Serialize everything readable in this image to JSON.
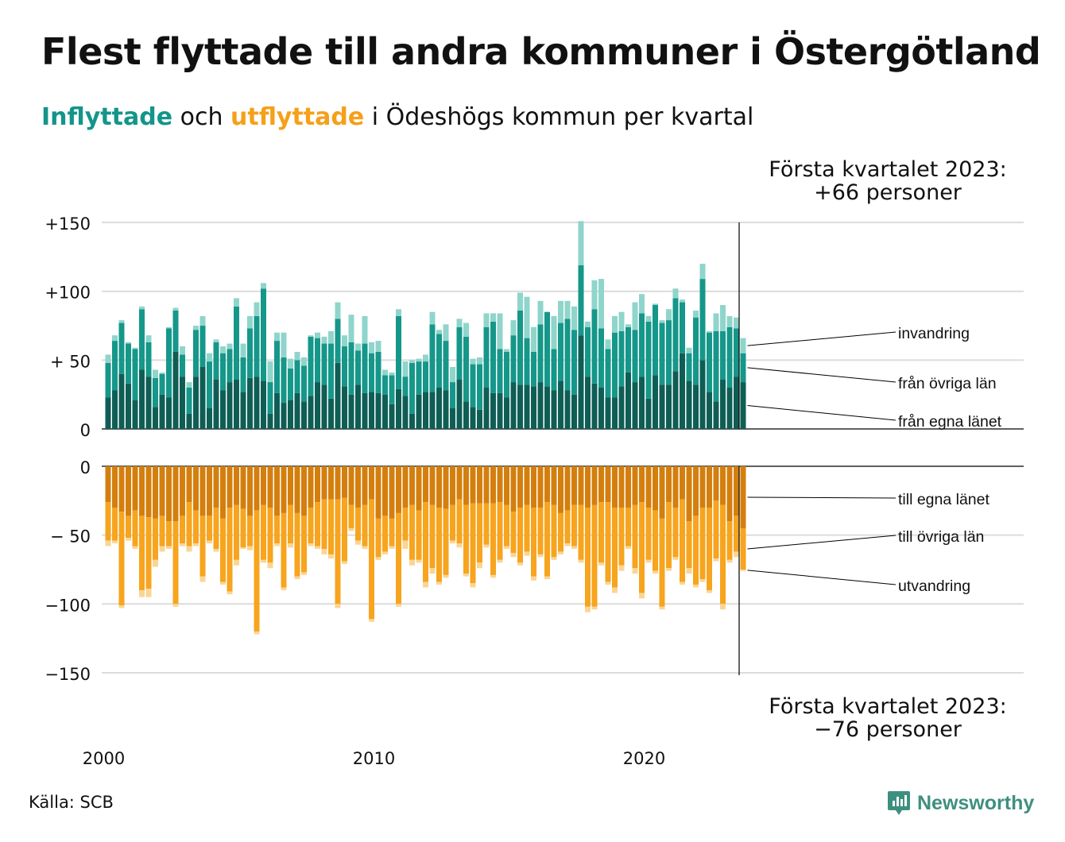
{
  "title": "Flest flyttade till andra kommuner i Östergötland",
  "subtitle": {
    "in_word": "Inflyttade",
    "mid": " och ",
    "out_word": "utflyttade",
    "rest": " i Ödeshögs kommun per kvartal"
  },
  "source": "Källa: SCB",
  "logo_text": "Newsworthy",
  "colors": {
    "in_egna": "#0f5e56",
    "in_ovriga": "#15978a",
    "in_invandring": "#8fd5cb",
    "out_egna": "#d47f0d",
    "out_ovriga": "#f7a41e",
    "out_utvandring": "#fbd593"
  },
  "chart_data": [
    {
      "type": "bar",
      "stacked": true,
      "title": "Inflyttade",
      "x_start": "2000 Q1",
      "x_ticks": [
        "2000",
        "2010",
        "2020"
      ],
      "ylim": [
        0,
        150
      ],
      "y_ticks": [
        "0",
        "+ 50",
        "+100",
        "+150"
      ],
      "y_tick_values": [
        0,
        50,
        100,
        150
      ],
      "grid": true,
      "annotation": {
        "line1": "Första kvartalet 2023:",
        "line2": "+66 personer"
      },
      "series": [
        {
          "name": "från egna länet",
          "values": [
            23,
            28,
            40,
            33,
            21,
            43,
            38,
            16,
            25,
            23,
            56,
            38,
            11,
            38,
            45,
            15,
            36,
            28,
            34,
            36,
            27,
            37,
            38,
            35,
            11,
            26,
            19,
            21,
            26,
            20,
            24,
            34,
            32,
            22,
            48,
            31,
            25,
            32,
            26,
            27,
            26,
            25,
            18,
            29,
            24,
            11,
            25,
            27,
            27,
            30,
            28,
            15,
            36,
            20,
            16,
            14,
            30,
            26,
            26,
            23,
            34,
            32,
            32,
            31,
            34,
            31,
            28,
            35,
            28,
            25,
            68,
            38,
            33,
            30,
            23,
            23,
            31,
            41,
            34,
            38,
            22,
            39,
            32,
            32,
            42,
            55,
            35,
            32,
            50,
            27,
            20,
            36,
            30,
            38,
            34
          ]
        },
        {
          "name": "från övriga län",
          "values": [
            25,
            36,
            37,
            29,
            37,
            44,
            25,
            21,
            15,
            50,
            30,
            16,
            19,
            34,
            30,
            34,
            27,
            27,
            24,
            53,
            25,
            36,
            44,
            67,
            23,
            38,
            33,
            23,
            24,
            26,
            43,
            32,
            30,
            40,
            32,
            29,
            38,
            25,
            36,
            28,
            30,
            14,
            21,
            53,
            14,
            37,
            24,
            22,
            49,
            39,
            36,
            19,
            38,
            47,
            31,
            33,
            44,
            52,
            32,
            33,
            34,
            54,
            34,
            25,
            42,
            54,
            30,
            42,
            52,
            47,
            51,
            36,
            54,
            43,
            35,
            47,
            40,
            33,
            38,
            46,
            56,
            51,
            45,
            47,
            53,
            37,
            20,
            49,
            59,
            43,
            51,
            35,
            44,
            35,
            21
          ]
        },
        {
          "name": "invandring",
          "values": [
            6,
            4,
            2,
            1,
            1,
            2,
            5,
            6,
            1,
            1,
            2,
            6,
            4,
            3,
            7,
            6,
            2,
            5,
            4,
            6,
            10,
            9,
            10,
            4,
            15,
            6,
            18,
            7,
            6,
            6,
            1,
            4,
            5,
            9,
            12,
            8,
            20,
            5,
            20,
            8,
            8,
            4,
            2,
            5,
            11,
            2,
            2,
            5,
            9,
            3,
            12,
            11,
            6,
            10,
            4,
            5,
            10,
            6,
            26,
            2,
            11,
            13,
            30,
            18,
            17,
            0,
            24,
            16,
            13,
            17,
            32,
            4,
            21,
            36,
            7,
            12,
            14,
            2,
            20,
            14,
            4,
            1,
            2,
            8,
            7,
            2,
            4,
            5,
            11,
            1,
            13,
            19,
            8,
            8,
            11
          ]
        }
      ]
    },
    {
      "type": "bar",
      "stacked": true,
      "title": "Utflyttade",
      "x_start": "2000 Q1",
      "ylim": [
        -150,
        0
      ],
      "y_ticks": [
        "0",
        "− 50",
        "−100",
        "−150"
      ],
      "y_tick_values": [
        0,
        -50,
        -100,
        -150
      ],
      "grid": true,
      "annotation": {
        "line1": "Första kvartalet 2023:",
        "line2": "−76 personer"
      },
      "series": [
        {
          "name": "till egna länet",
          "values": [
            -26,
            -30,
            -33,
            -36,
            -32,
            -36,
            -37,
            -38,
            -36,
            -40,
            -40,
            -36,
            -26,
            -32,
            -36,
            -36,
            -30,
            -38,
            -30,
            -28,
            -31,
            -36,
            -32,
            -28,
            -30,
            -36,
            -34,
            -28,
            -34,
            -36,
            -30,
            -26,
            -24,
            -24,
            -24,
            -23,
            -28,
            -30,
            -28,
            -24,
            -38,
            -36,
            -38,
            -34,
            -30,
            -28,
            -32,
            -26,
            -28,
            -30,
            -31,
            -28,
            -24,
            -28,
            -27,
            -27,
            -27,
            -27,
            -26,
            -28,
            -33,
            -30,
            -28,
            -30,
            -30,
            -26,
            -28,
            -34,
            -32,
            -28,
            -28,
            -30,
            -28,
            -26,
            -26,
            -30,
            -30,
            -30,
            -28,
            -26,
            -30,
            -32,
            -38,
            -26,
            -30,
            -24,
            -40,
            -36,
            -30,
            -30,
            -25,
            -28,
            -40,
            -36,
            -45
          ]
        },
        {
          "name": "till övriga län",
          "values": [
            -28,
            -24,
            -68,
            -16,
            -26,
            -54,
            -52,
            -30,
            -22,
            -18,
            -60,
            -20,
            -32,
            -24,
            -44,
            -18,
            -30,
            -46,
            -61,
            -40,
            -28,
            -22,
            -88,
            -40,
            -40,
            -20,
            -54,
            -28,
            -46,
            -41,
            -26,
            -32,
            -36,
            -40,
            -76,
            -46,
            -17,
            -24,
            -30,
            -87,
            -28,
            -26,
            -20,
            -66,
            -24,
            -40,
            -36,
            -58,
            -46,
            -54,
            -48,
            -26,
            -32,
            -50,
            -58,
            -43,
            -30,
            -52,
            -42,
            -30,
            -30,
            -40,
            -34,
            -50,
            -34,
            -54,
            -38,
            -28,
            -24,
            -30,
            -40,
            -72,
            -74,
            -44,
            -58,
            -58,
            -42,
            -28,
            -46,
            -66,
            -38,
            -44,
            -64,
            -48,
            -36,
            -60,
            -34,
            -50,
            -52,
            -60,
            -42,
            -72,
            -28,
            -26,
            -30
          ]
        },
        {
          "name": "utvandring",
          "values": [
            -4,
            -2,
            -2,
            -2,
            -2,
            -5,
            -6,
            -5,
            -4,
            -2,
            -2,
            -2,
            -4,
            -2,
            -4,
            -2,
            -2,
            -2,
            -2,
            -4,
            -1,
            -3,
            -2,
            -2,
            -4,
            -2,
            -2,
            -3,
            -2,
            -2,
            -2,
            -2,
            -4,
            -3,
            -3,
            -2,
            -2,
            -3,
            -2,
            -2,
            -2,
            -2,
            -2,
            -2,
            -6,
            -4,
            -2,
            -4,
            -4,
            -2,
            -2,
            -2,
            -3,
            -2,
            -3,
            -4,
            -2,
            -2,
            -2,
            -2,
            -3,
            -2,
            -3,
            -3,
            -2,
            -2,
            -2,
            -2,
            -2,
            -2,
            -2,
            -4,
            -2,
            -2,
            -2,
            -4,
            -4,
            -2,
            -4,
            -4,
            -2,
            -2,
            -2,
            -2,
            -2,
            -2,
            -4,
            -2,
            -2,
            -2,
            -2,
            -4,
            -2,
            -4,
            -1
          ]
        }
      ]
    }
  ]
}
